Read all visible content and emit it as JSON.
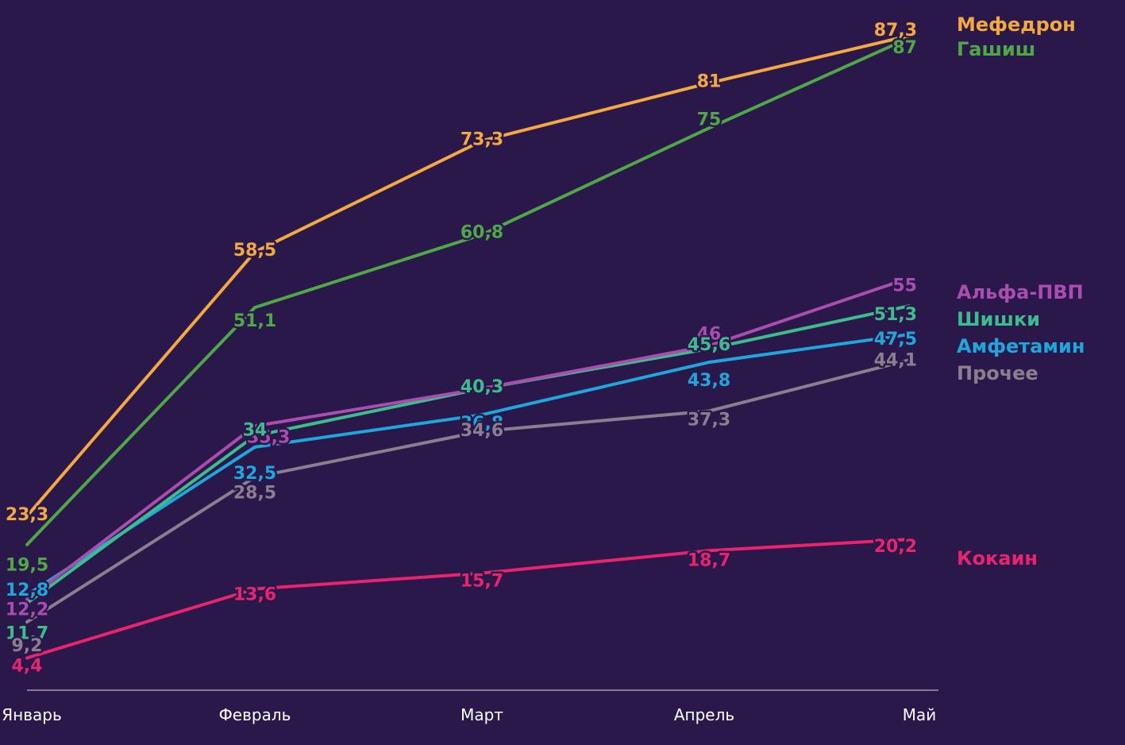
{
  "chart_data": {
    "type": "line",
    "title": "",
    "xlabel": "",
    "ylabel": "",
    "categories": [
      "Январь",
      "Февраль",
      "Март",
      "Апрель",
      "Май"
    ],
    "ylim": [
      0,
      90
    ],
    "grid": false,
    "legend_placement": "right, at line ends",
    "series": [
      {
        "name": "Мефедрон",
        "color": "#f3a840",
        "values": [
          23.3,
          58.5,
          73.3,
          81,
          87.3
        ],
        "labels": [
          "23,3",
          "58,5",
          "73,3",
          "81",
          "87,3"
        ]
      },
      {
        "name": "Гашиш",
        "color": "#4fa845",
        "values": [
          19.5,
          51.1,
          60.8,
          75,
          87
        ],
        "labels": [
          "19,5",
          "51,1",
          "60,8",
          "75",
          "87"
        ]
      },
      {
        "name": "Альфа-ПВП",
        "color": "#a94dae",
        "values": [
          12.2,
          35.3,
          40.3,
          46,
          55
        ],
        "labels": [
          "12,2",
          "35,3",
          "40,3",
          "46",
          "55"
        ]
      },
      {
        "name": "Шишки",
        "color": "#3dbd8e",
        "values": [
          11.7,
          34,
          40.3,
          45.6,
          51.3
        ],
        "labels": [
          "11,7",
          "34",
          "40,3",
          "45,6",
          "51,3"
        ]
      },
      {
        "name": "Амфетамин",
        "color": "#1fa7dc",
        "values": [
          12.8,
          32.5,
          36.8,
          43.8,
          47.5
        ],
        "labels": [
          "12,8",
          "32,5",
          "36,8",
          "43,8",
          "47,5"
        ]
      },
      {
        "name": "Прочее",
        "color": "#8a7f8e",
        "values": [
          9.2,
          28.5,
          34.6,
          37.3,
          44.1
        ],
        "labels": [
          "9,2",
          "28,5",
          "34,6",
          "37,3",
          "44,1"
        ]
      },
      {
        "name": "Кокаин",
        "color": "#e8246f",
        "values": [
          4.4,
          13.6,
          15.7,
          18.7,
          20.2
        ],
        "labels": [
          "4,4",
          "13,6",
          "15,7",
          "18,7",
          "20,2"
        ]
      }
    ]
  }
}
